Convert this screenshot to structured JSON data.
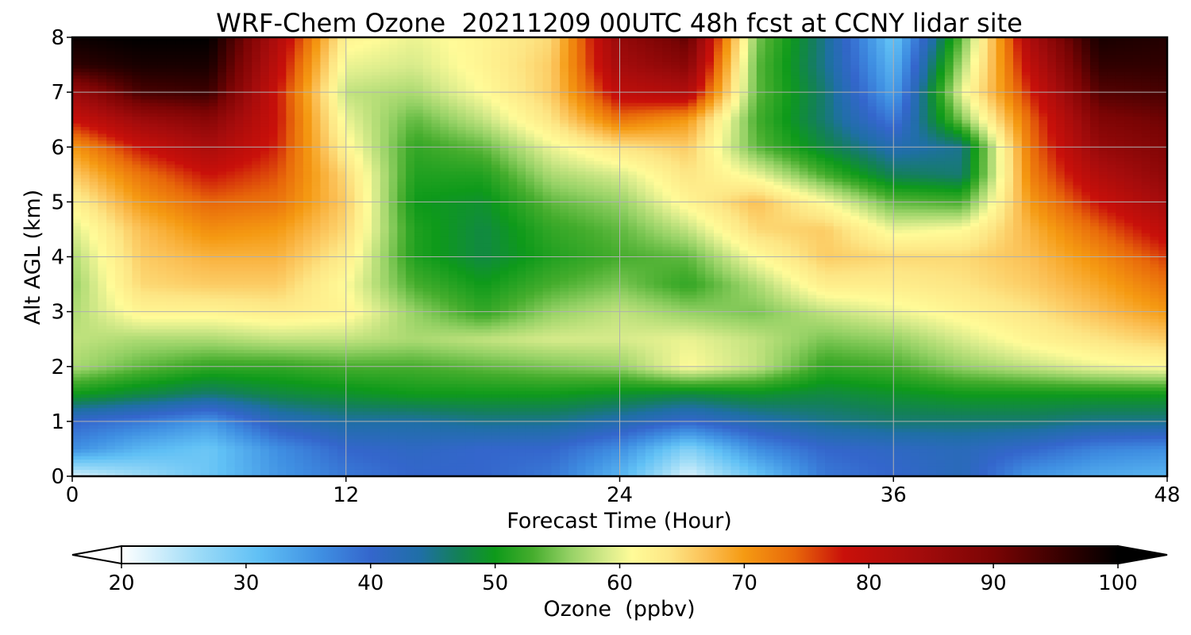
{
  "chart_data": {
    "type": "heatmap",
    "title": "WRF-Chem Ozone  20211209 00UTC 48h fcst at CCNY lidar site",
    "xlabel": "Forecast Time (Hour)",
    "ylabel": "Alt AGL (km)",
    "xlim": [
      0,
      48
    ],
    "ylim": [
      0,
      8
    ],
    "x_ticks": [
      "0",
      "12",
      "24",
      "36",
      "48"
    ],
    "y_ticks": [
      "0",
      "1",
      "2",
      "3",
      "4",
      "5",
      "6",
      "7",
      "8"
    ],
    "grid": true,
    "x": [
      0,
      3,
      6,
      9,
      12,
      15,
      18,
      21,
      24,
      27,
      30,
      33,
      36,
      39,
      42,
      45,
      48
    ],
    "y": [
      0,
      0.5,
      1,
      1.5,
      2,
      2.5,
      3,
      3.5,
      4,
      4.5,
      5,
      5.5,
      6,
      6.5,
      7,
      7.5,
      8
    ],
    "z_units": "ppbv",
    "values": [
      [
        22,
        26,
        30,
        35,
        38,
        40,
        40,
        38,
        32,
        22,
        30,
        38,
        40,
        42,
        35,
        33,
        32
      ],
      [
        36,
        32,
        30,
        36,
        40,
        41,
        40,
        40,
        36,
        28,
        36,
        40,
        41,
        42,
        40,
        37,
        36
      ],
      [
        40,
        38,
        35,
        42,
        44,
        44,
        45,
        45,
        43,
        40,
        43,
        45,
        46,
        46,
        46,
        45,
        45
      ],
      [
        50,
        48,
        46,
        48,
        49,
        50,
        50,
        50,
        49,
        48,
        49,
        48,
        49,
        50,
        50,
        50,
        50
      ],
      [
        57,
        54,
        52,
        52,
        53,
        53,
        54,
        55,
        56,
        61,
        58,
        52,
        53,
        56,
        58,
        60,
        61
      ],
      [
        58,
        57,
        57,
        58,
        58,
        57,
        58,
        59,
        59,
        60,
        58,
        55,
        56,
        59,
        62,
        64,
        66
      ],
      [
        57,
        62,
        62,
        63,
        62,
        56,
        52,
        56,
        58,
        56,
        55,
        58,
        60,
        62,
        64,
        67,
        70
      ],
      [
        56,
        65,
        66,
        66,
        61,
        53,
        50,
        53,
        55,
        52,
        57,
        63,
        63,
        64,
        66,
        69,
        73
      ],
      [
        57,
        66,
        68,
        68,
        63,
        51,
        48,
        51,
        53,
        54,
        61,
        66,
        65,
        65,
        67,
        71,
        76
      ],
      [
        59,
        67,
        71,
        70,
        65,
        51,
        48,
        52,
        54,
        58,
        65,
        66,
        60,
        61,
        68,
        74,
        80
      ],
      [
        62,
        70,
        74,
        73,
        66,
        50,
        49,
        54,
        56,
        62,
        67,
        61,
        54,
        53,
        70,
        78,
        84
      ],
      [
        66,
        73,
        78,
        75,
        65,
        51,
        51,
        57,
        59,
        64,
        60,
        53,
        47,
        46,
        72,
        82,
        87
      ],
      [
        70,
        78,
        83,
        77,
        62,
        52,
        54,
        60,
        64,
        66,
        54,
        48,
        43,
        45,
        73,
        86,
        89
      ],
      [
        78,
        85,
        88,
        78,
        60,
        54,
        58,
        64,
        73,
        70,
        53,
        46,
        38,
        55,
        74,
        89,
        91
      ],
      [
        85,
        94,
        95,
        78,
        58,
        57,
        61,
        66,
        80,
        82,
        54,
        46,
        34,
        60,
        77,
        93,
        94
      ],
      [
        96,
        98,
        98,
        80,
        60,
        59,
        62,
        66,
        84,
        88,
        54,
        45,
        32,
        57,
        80,
        96,
        96
      ],
      [
        99,
        100,
        100,
        82,
        62,
        60,
        62,
        65,
        86,
        92,
        55,
        45,
        30,
        54,
        83,
        98,
        97
      ]
    ],
    "colorbar": {
      "label": "Ozone  (ppbv)",
      "min": 20,
      "max": 100,
      "ticks": [
        "20",
        "30",
        "40",
        "50",
        "60",
        "70",
        "80",
        "90",
        "100"
      ],
      "extend": "both",
      "colors": [
        {
          "v": 20,
          "c": "#ffffff"
        },
        {
          "v": 26,
          "c": "#9fdcf7"
        },
        {
          "v": 31,
          "c": "#60c0f5"
        },
        {
          "v": 36,
          "c": "#3f8fe2"
        },
        {
          "v": 40,
          "c": "#3466cc"
        },
        {
          "v": 44,
          "c": "#1f6fa6"
        },
        {
          "v": 47,
          "c": "#138058"
        },
        {
          "v": 50,
          "c": "#0e9a1a"
        },
        {
          "v": 53,
          "c": "#45ad2d"
        },
        {
          "v": 56,
          "c": "#95d165"
        },
        {
          "v": 59,
          "c": "#d7eb8b"
        },
        {
          "v": 61,
          "c": "#fffb98"
        },
        {
          "v": 64,
          "c": "#fde685"
        },
        {
          "v": 67,
          "c": "#fbbf54"
        },
        {
          "v": 70,
          "c": "#f59a12"
        },
        {
          "v": 74,
          "c": "#e8680a"
        },
        {
          "v": 78,
          "c": "#c9100a"
        },
        {
          "v": 84,
          "c": "#a40c0c"
        },
        {
          "v": 90,
          "c": "#7a0404"
        },
        {
          "v": 96,
          "c": "#300000"
        },
        {
          "v": 100,
          "c": "#000000"
        }
      ]
    }
  }
}
